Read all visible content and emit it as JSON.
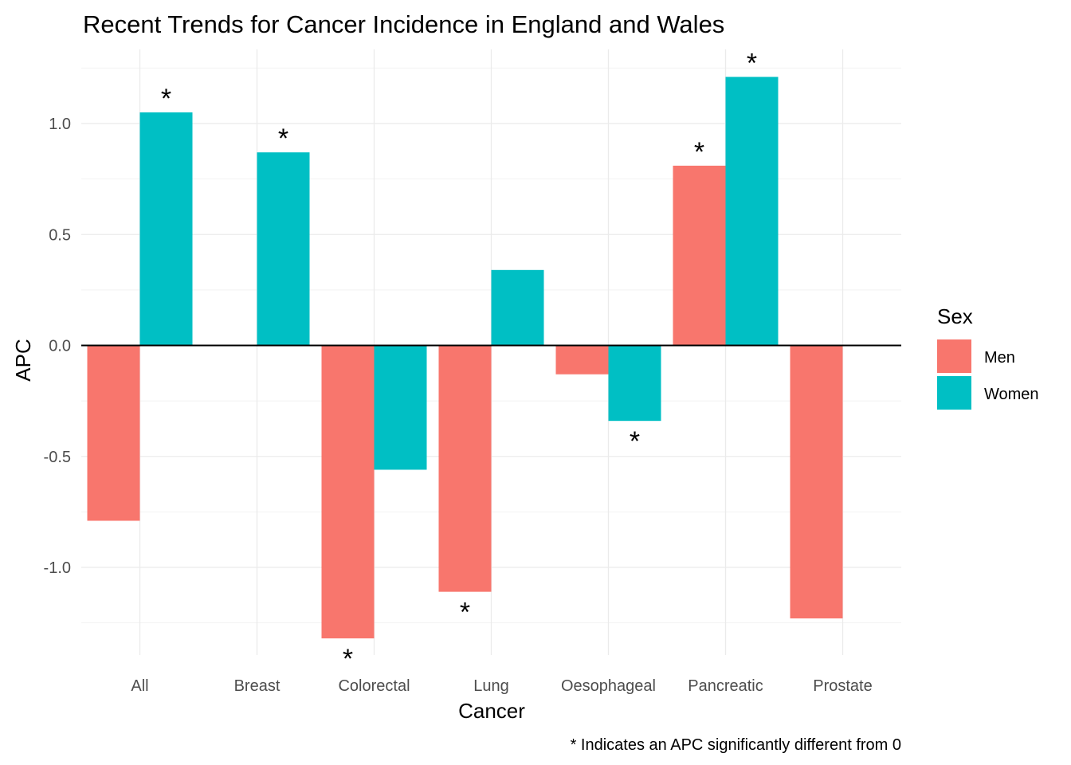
{
  "chart_data": {
    "type": "bar",
    "title": "Recent Trends for Cancer Incidence in England and Wales",
    "xlabel": "Cancer",
    "ylabel": "APC",
    "caption": "* Indicates an APC significantly different from 0",
    "categories": [
      "All",
      "Breast",
      "Colorectal",
      "Lung",
      "Oesophageal",
      "Pancreatic",
      "Prostate"
    ],
    "series": [
      {
        "name": "Men",
        "color": "#F8766D",
        "values": [
          -0.79,
          null,
          -1.32,
          -1.11,
          -0.13,
          0.81,
          -1.23
        ],
        "significant": [
          false,
          false,
          true,
          true,
          false,
          true,
          false
        ]
      },
      {
        "name": "Women",
        "color": "#00BFC4",
        "values": [
          1.05,
          0.87,
          -0.56,
          0.34,
          -0.34,
          1.21,
          null
        ],
        "significant": [
          true,
          true,
          false,
          false,
          true,
          true,
          false
        ]
      }
    ],
    "significance_marker": "*",
    "yticks": [
      -1.0,
      -0.5,
      0.0,
      0.5,
      1.0
    ],
    "ytick_labels": [
      "-1.0",
      "-0.5",
      "0.0",
      "0.5",
      "1.0"
    ],
    "ylim": [
      -1.45,
      1.34
    ],
    "legend": {
      "title": "Sex",
      "position": "right"
    },
    "grid": true,
    "zero_line": true
  }
}
